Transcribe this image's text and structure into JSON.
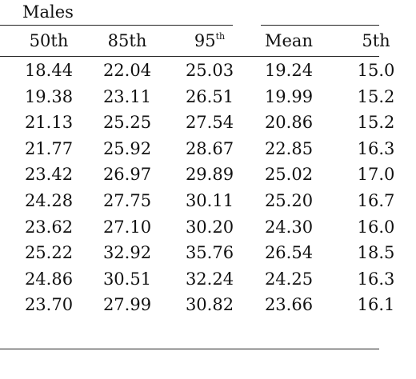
{
  "group_label": "Males",
  "headers": [
    {
      "base": "50th",
      "sup": ""
    },
    {
      "base": "85th",
      "sup": ""
    },
    {
      "base": "95",
      "sup": "th"
    },
    {
      "base": "Mean",
      "sup": ""
    },
    {
      "base": "5th",
      "sup": ""
    }
  ],
  "rows": [
    [
      "18.44",
      "22.04",
      "25.03",
      "19.24",
      "15.0"
    ],
    [
      "19.38",
      "23.11",
      "26.51",
      "19.99",
      "15.2"
    ],
    [
      "21.13",
      "25.25",
      "27.54",
      "20.86",
      "15.2"
    ],
    [
      "21.77",
      "25.92",
      "28.67",
      "22.85",
      "16.3"
    ],
    [
      "23.42",
      "26.97",
      "29.89",
      "25.02",
      "17.0"
    ],
    [
      "24.28",
      "27.75",
      "30.11",
      "25.20",
      "16.7"
    ],
    [
      "23.62",
      "27.10",
      "30.20",
      "24.30",
      "16.0"
    ],
    [
      "25.22",
      "32.92",
      "35.76",
      "26.54",
      "18.5"
    ],
    [
      "24.86",
      "30.51",
      "32.24",
      "24.25",
      "16.3"
    ],
    [
      "23.70",
      "27.99",
      "30.82",
      "23.66",
      "16.1"
    ]
  ]
}
